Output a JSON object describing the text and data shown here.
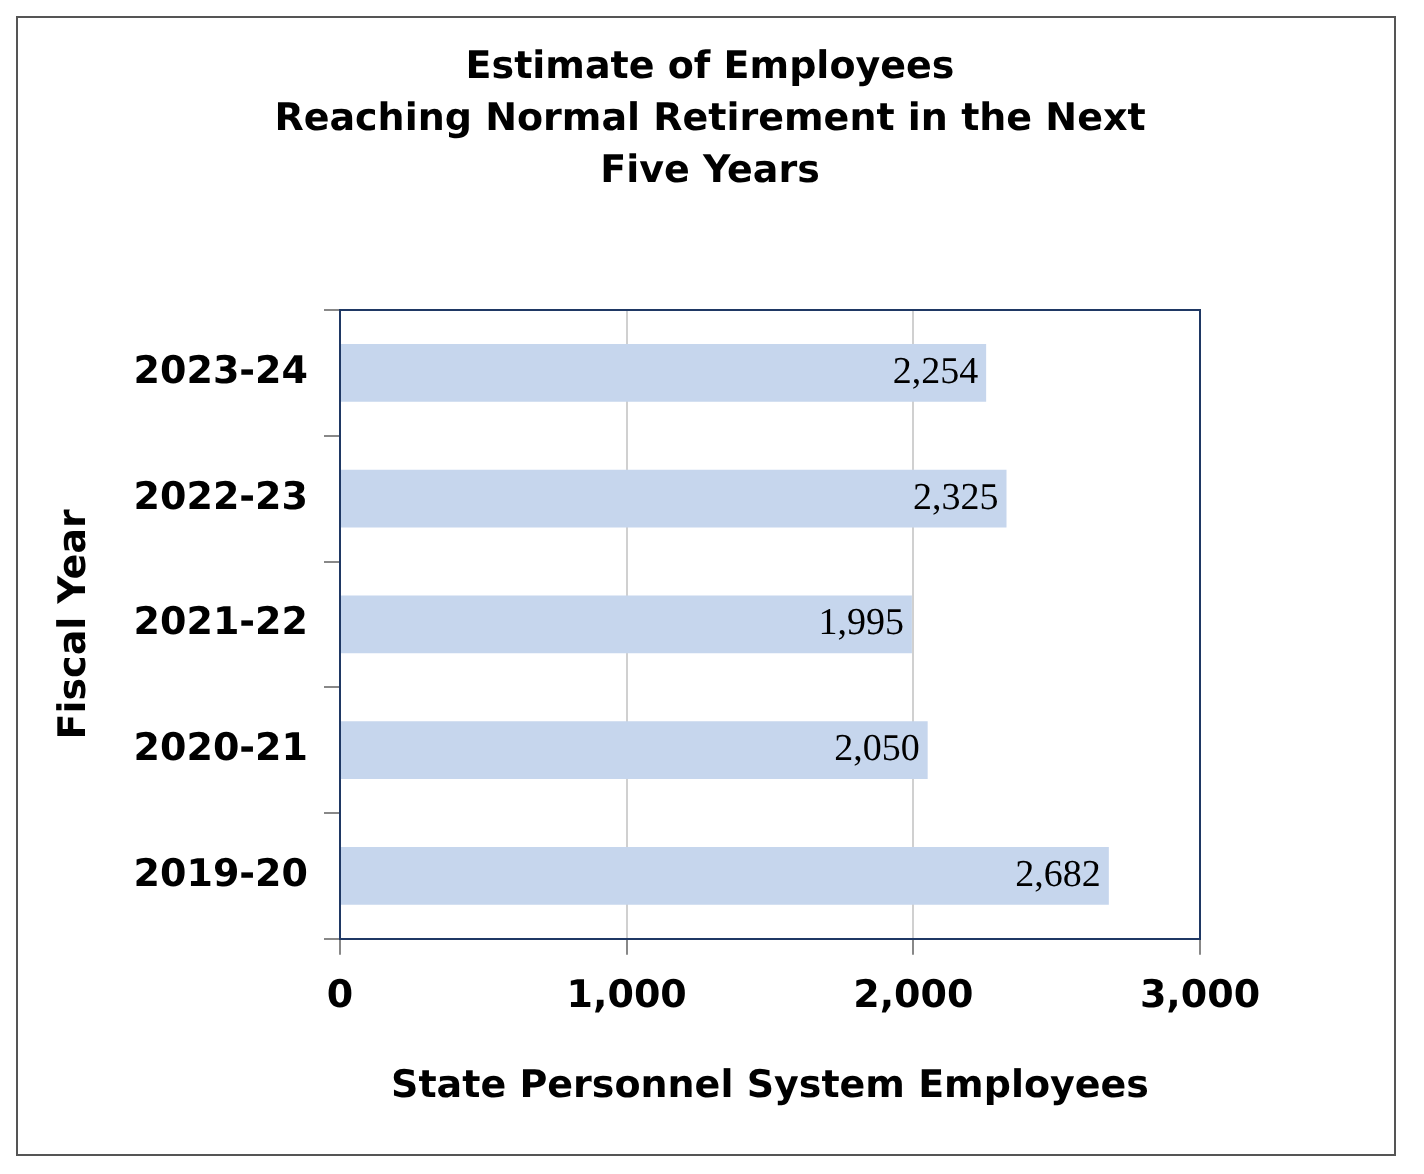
{
  "chart_data": {
    "type": "bar",
    "orientation": "horizontal",
    "title": "Estimate of Employees\nReaching Normal Retirement in the Next Five Years",
    "xlabel": "State Personnel System Employees",
    "ylabel": "Fiscal Year",
    "categories": [
      "2023-24",
      "2022-23",
      "2021-22",
      "2020-21",
      "2019-20"
    ],
    "values": [
      2254,
      2325,
      1995,
      2050,
      2682
    ],
    "value_labels": [
      "2,254",
      "2,325",
      "1,995",
      "2,050",
      "2,682"
    ],
    "color": "#c6d6ed",
    "xlim": [
      0,
      3000
    ],
    "xticks": [
      0,
      {
        "value": 1000,
        "label": "1,000"
      },
      {
        "value": 2000,
        "label": "2,000"
      },
      {
        "value": 3000,
        "label": "3,000"
      }
    ],
    "grid": "x",
    "legend": false
  }
}
